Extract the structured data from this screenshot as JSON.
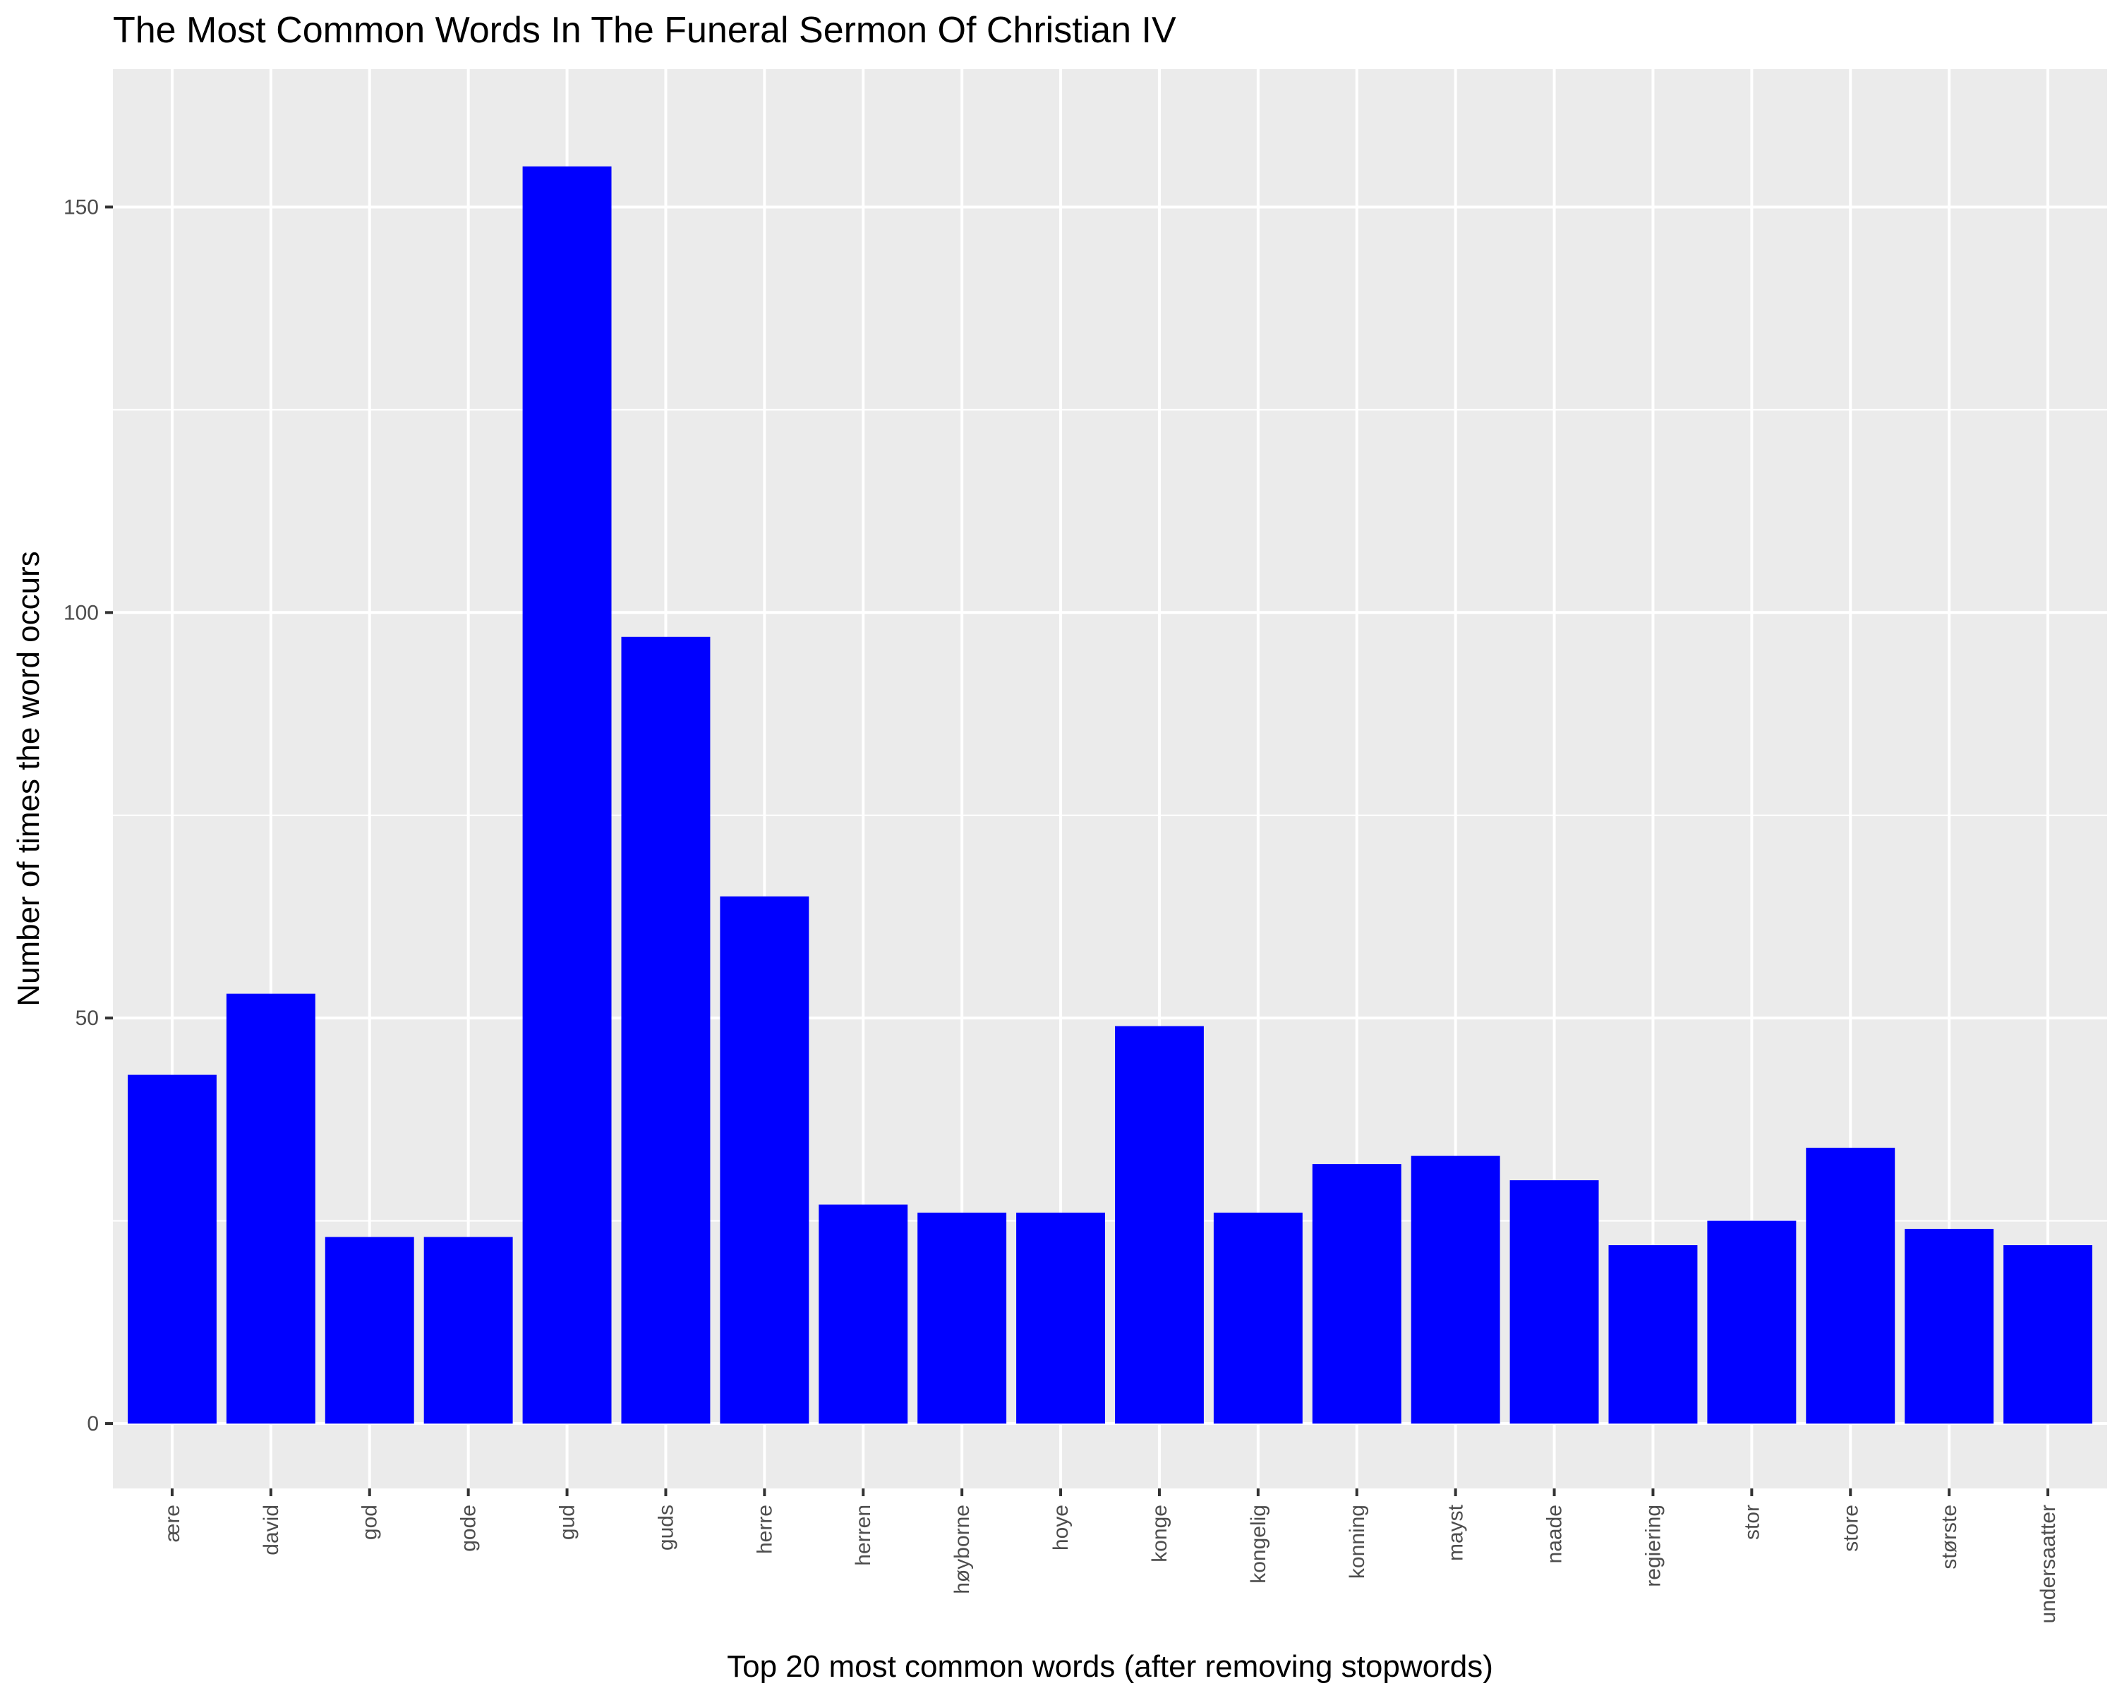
{
  "chart_data": {
    "type": "bar",
    "title": "The Most Common Words In The Funeral Sermon Of Christian IV",
    "xlabel": "Top 20 most common words (after removing stopwords)",
    "ylabel": "Number of times the word occurs",
    "categories": [
      "ære",
      "david",
      "god",
      "gode",
      "gud",
      "guds",
      "herre",
      "herren",
      "høyborne",
      "hoye",
      "konge",
      "kongelig",
      "konning",
      "mayst",
      "naade",
      "regiering",
      "stor",
      "store",
      "største",
      "undersaatter"
    ],
    "values": [
      43,
      53,
      23,
      23,
      155,
      97,
      65,
      27,
      26,
      26,
      49,
      26,
      32,
      33,
      30,
      22,
      25,
      34,
      24,
      22
    ],
    "y_ticks": [
      0,
      50,
      100,
      150
    ],
    "y_tick_labels": [
      "0",
      "50",
      "100",
      "150"
    ],
    "ylim": [
      -8,
      167
    ],
    "grid": true,
    "bar_color": "#0000FF",
    "panel_background": "#EBEBEB",
    "gridline_color": "#FFFFFF"
  }
}
